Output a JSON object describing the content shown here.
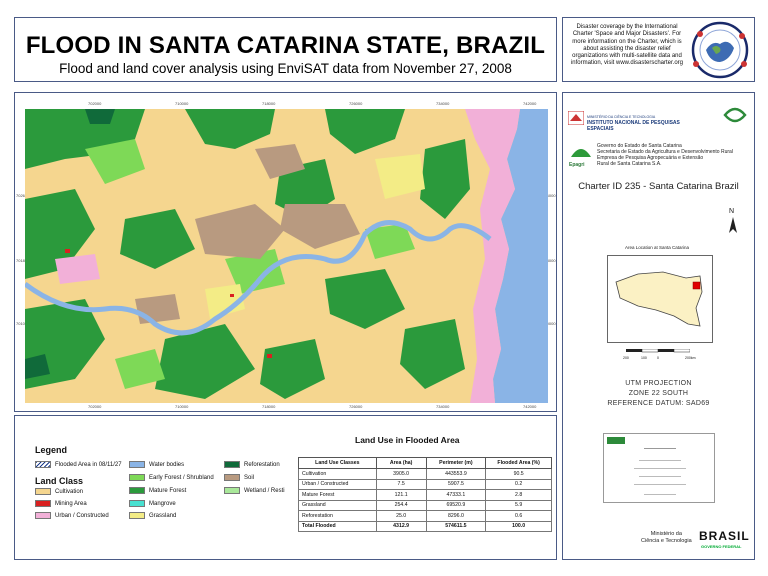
{
  "header": {
    "title": "FLOOD IN SANTA CATARINA STATE, BRAZIL",
    "subtitle": "Flood and land cover analysis using EnviSAT data from November 27, 2008"
  },
  "charter_info": {
    "text": "Disaster coverage by the International Charter 'Space and Major Disasters'. For more information on the Charter, which is about assisting the disaster relief organizations with multi-satellite data and information, visit www.disasterscharter.org"
  },
  "map": {
    "top_ticks": [
      "702000",
      "710000",
      "718000",
      "726000",
      "734000",
      "742000"
    ],
    "bottom_ticks": [
      "702000",
      "710000",
      "718000",
      "726000",
      "734000",
      "742000"
    ],
    "left_ticks": [
      "7026000",
      "7018000",
      "7010000"
    ],
    "right_ticks": [
      "7026000",
      "7018000",
      "7010000"
    ]
  },
  "side": {
    "inpe_ministry": "MINISTÉRIO DA CIÊNCIA E TECNOLOGIA",
    "inpe_name": "INSTITUTO NACIONAL DE PESQUISAS ESPACIAIS",
    "epagri_label": "Epagri",
    "epagri_lines": [
      "Governo do Estado de Santa Catarina",
      "Secretaria de Estado da Agricultura e Desenvolvimento Rural",
      "Empresa de Pesquisa Agropecuária e Extensão",
      "Rural de Santa Catarina S.A."
    ],
    "charter_id": "Charter ID 235 - Santa Catarina Brazil",
    "north_label": "N",
    "inset_title": "Area Location at Santa Catarina",
    "scale_ticks": [
      "200",
      "100",
      "0",
      "200km"
    ],
    "projection": [
      "UTM PROJECTION",
      "ZONE 22 SOUTH",
      "REFERENCE DATUM: SAD69"
    ],
    "ministry": [
      "Ministério da",
      "Ciência e Tecnologia"
    ],
    "brasil": "BRASIL",
    "brasil_sub": "GOVERNO FEDERAL"
  },
  "legend": {
    "title": "Legend",
    "land_class_title": "Land Class",
    "flooded_label": "Flooded Area in 08/11/27",
    "classes_col1": [
      {
        "label": "Cultivation",
        "color": "#f5d68f"
      },
      {
        "label": "Mining Area",
        "color": "#d92020"
      },
      {
        "label": "Urban / Constructed",
        "color": "#f2b0d8"
      }
    ],
    "classes_col2": [
      {
        "label": "Water bodies",
        "color": "#8ab4e6"
      },
      {
        "label": "Early Forest / Shrubland",
        "color": "#7ed957"
      },
      {
        "label": "Mature Forest",
        "color": "#2b9a3c"
      },
      {
        "label": "Mangrove",
        "color": "#48e0d0"
      },
      {
        "label": "Grassland",
        "color": "#f3ec86"
      }
    ],
    "classes_col3": [
      {
        "label": "Reforestation",
        "color": "#106a3a"
      },
      {
        "label": "Soil",
        "color": "#b89a80"
      },
      {
        "label": "Wetland / Resti",
        "color": "#a9e89a"
      }
    ]
  },
  "table": {
    "title": "Land Use in Flooded Area",
    "headers": [
      "Land Use Classes",
      "Area (ha)",
      "Perimeter (m)",
      "Flooded Area (%)"
    ],
    "rows": [
      [
        "Cultivation",
        "3905.0",
        "443553.9",
        "90.5"
      ],
      [
        "Urban / Constructed",
        "7.5",
        "5907.5",
        "0.2"
      ],
      [
        "Mature Forest",
        "121.1",
        "47333.1",
        "2.8"
      ],
      [
        "Grassland",
        "254.4",
        "69520.9",
        "5.9"
      ],
      [
        "Reforestation",
        "25.0",
        "8296.0",
        "0.6"
      ]
    ],
    "total": [
      "Total Flooded",
      "4312.9",
      "574611.5",
      "100.0"
    ]
  },
  "colors": {
    "panel_border": "#4a5a86",
    "water": "#8ab4e6",
    "cultivation": "#f5d68f",
    "mature_forest": "#2b9a3c",
    "urban": "#f2b0d8",
    "grassland": "#f3ec86",
    "soil": "#b89a80"
  }
}
